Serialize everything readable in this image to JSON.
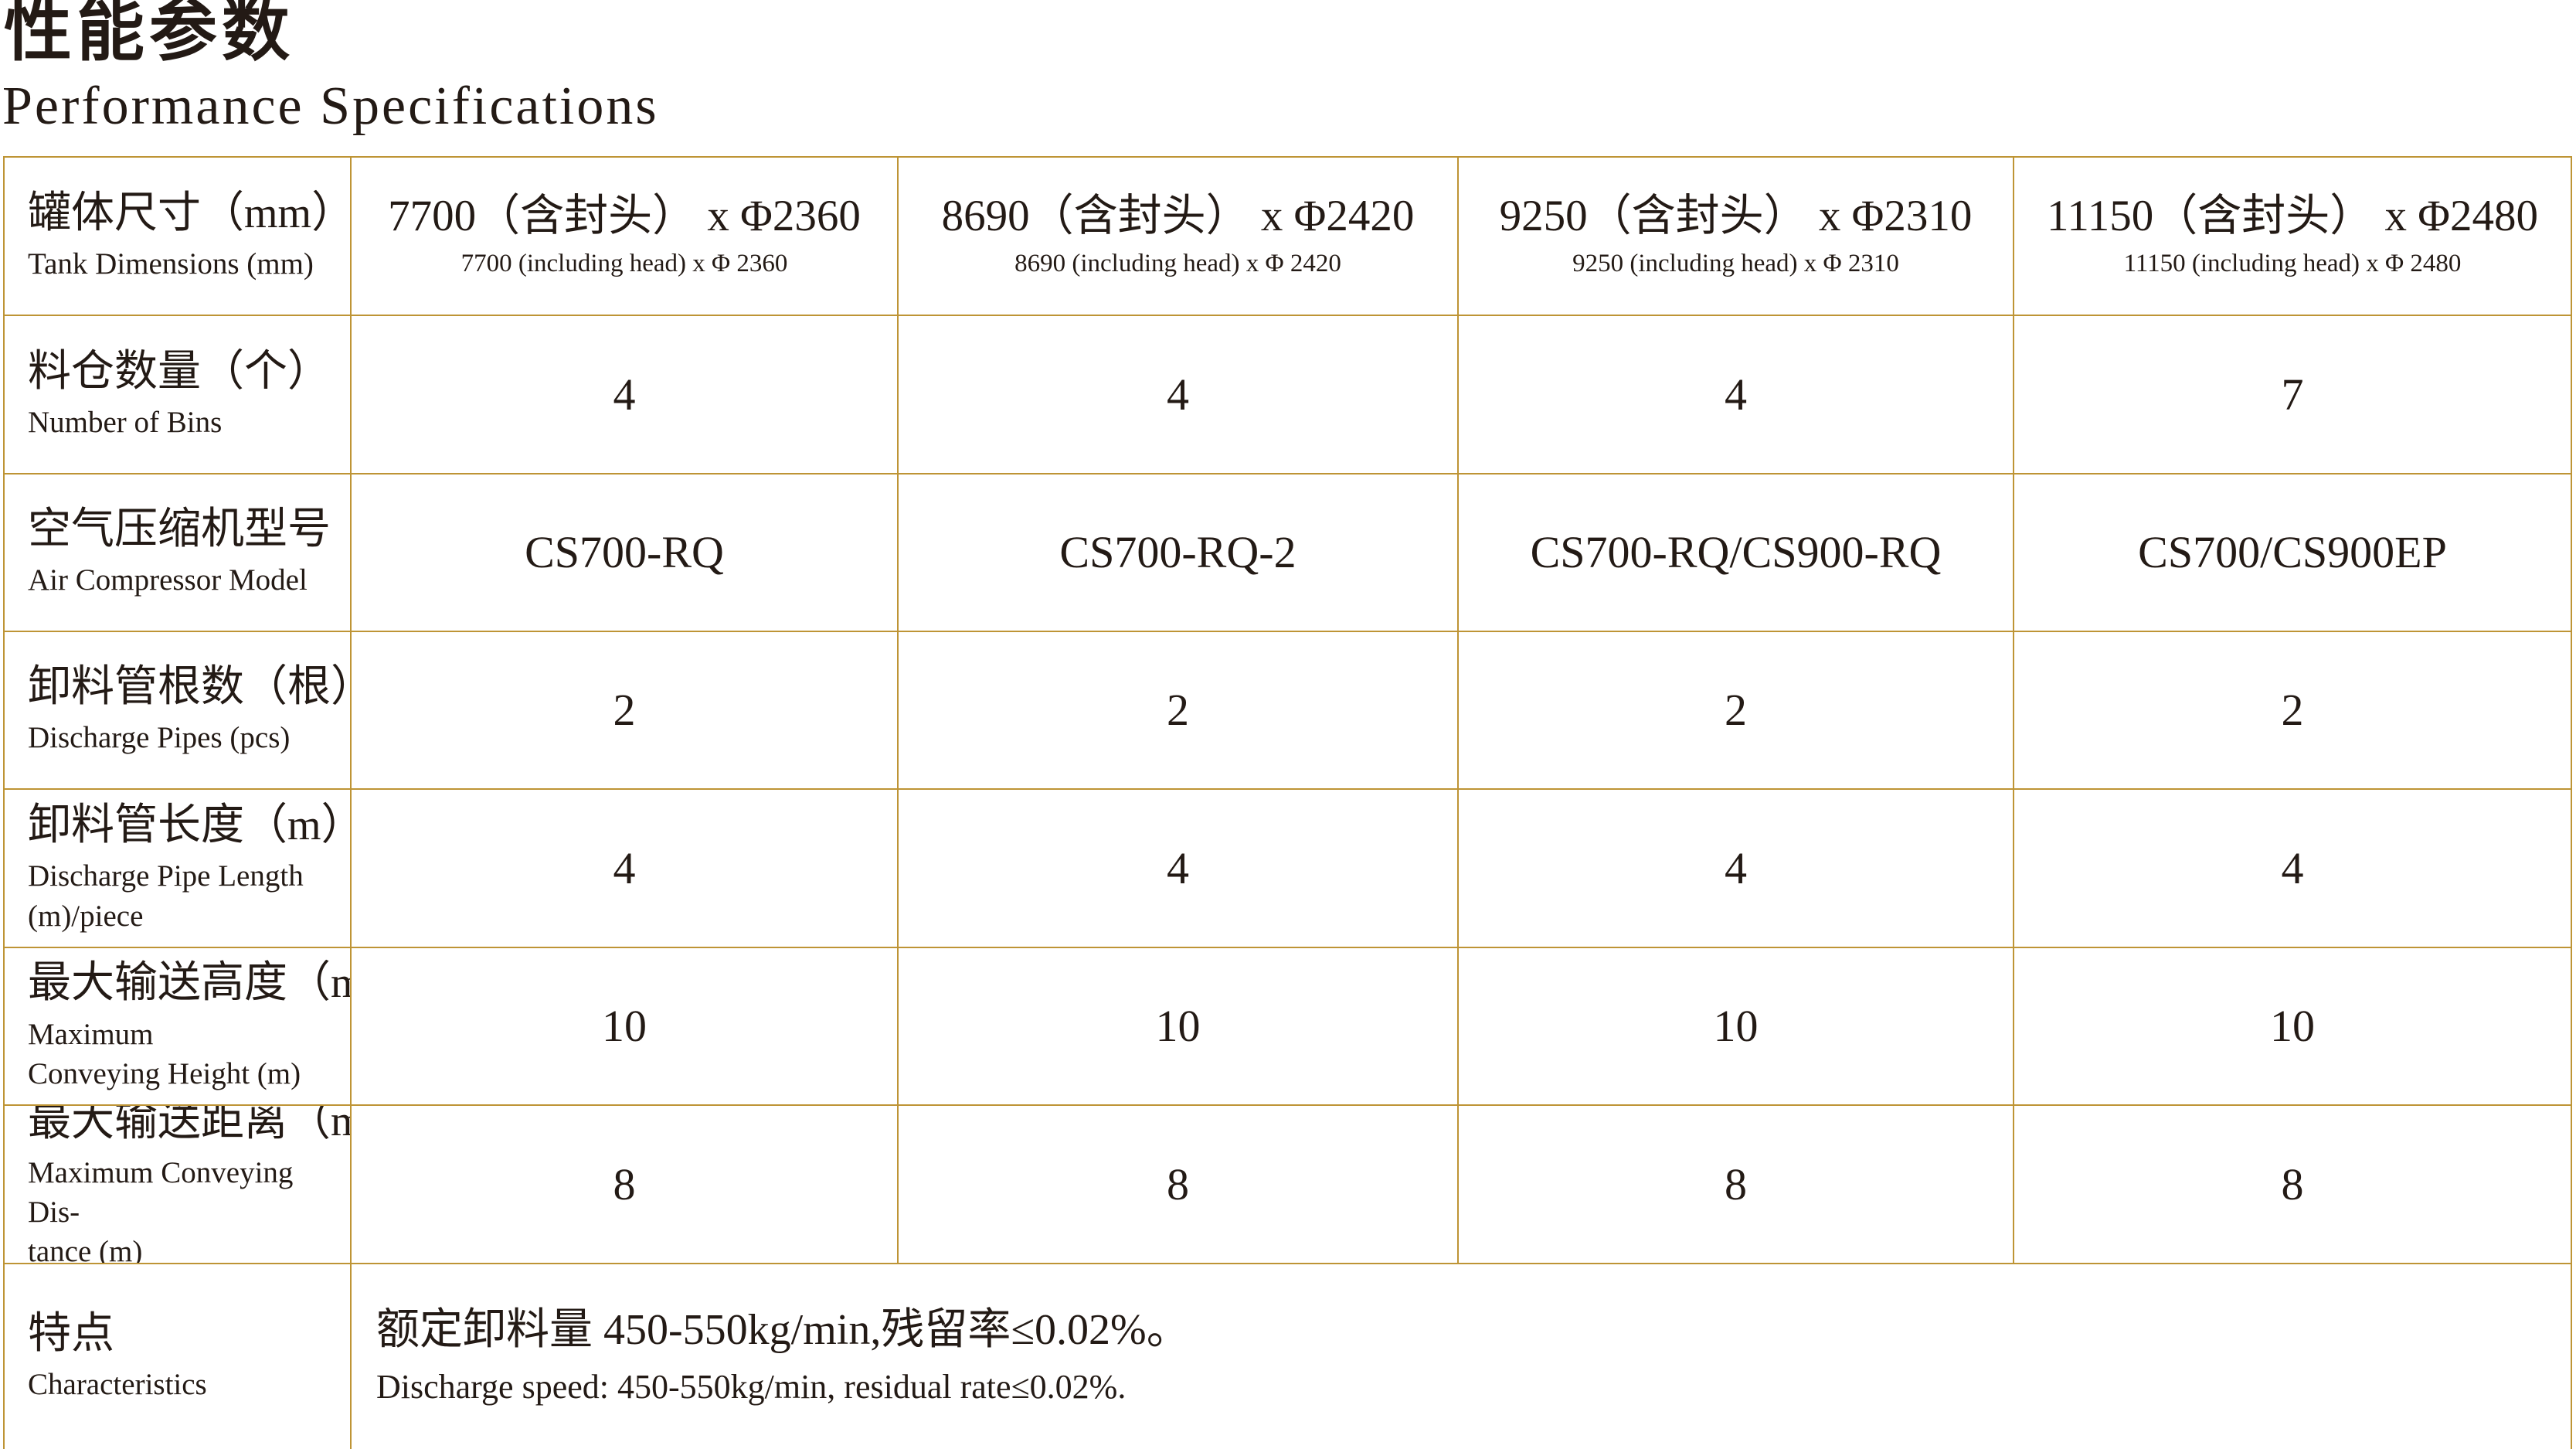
{
  "header": {
    "title_zh": "性能参数",
    "title_en": "Performance Specifications"
  },
  "colors": {
    "border_gold": "#be9435",
    "text": "#231a15",
    "background": "#ffffff"
  },
  "table": {
    "rows": [
      {
        "label_zh": "罐体尺寸（mm）",
        "label_en": "Tank Dimensions (mm)",
        "cells": [
          {
            "zh": "7700（含封头） x Φ2360",
            "en": "7700 (including head) x Φ 2360"
          },
          {
            "zh": "8690（含封头） x Φ2420",
            "en": "8690 (including head) x Φ 2420"
          },
          {
            "zh": "9250（含封头） x Φ2310",
            "en": "9250 (including head) x Φ 2310"
          },
          {
            "zh": "11150（含封头） x Φ2480",
            "en": "11150 (including head) x Φ 2480"
          }
        ]
      },
      {
        "label_zh": "料仓数量（个）",
        "label_en": "Number of Bins",
        "cells": [
          "4",
          "4",
          "4",
          "7"
        ]
      },
      {
        "label_zh": "空气压缩机型号",
        "label_en": "Air Compressor Model",
        "cells": [
          "CS700-RQ",
          "CS700-RQ-2",
          "CS700-RQ/CS900-RQ",
          "CS700/CS900EP"
        ]
      },
      {
        "label_zh": "卸料管根数（根）",
        "label_en": "Discharge Pipes (pcs)",
        "cells": [
          "2",
          "2",
          "2",
          "2"
        ]
      },
      {
        "label_zh": "卸料管长度（m）/根",
        "label_en": "Discharge Pipe Length",
        "label_en2": "(m)/piece",
        "cells": [
          "4",
          "4",
          "4",
          "4"
        ]
      },
      {
        "label_zh": "最大输送高度（m）",
        "label_en": "Maximum",
        "label_en2": "Conveying Height (m)",
        "cells": [
          "10",
          "10",
          "10",
          "10"
        ]
      },
      {
        "label_zh": "最大输送距离（m）",
        "label_en": "Maximum Conveying Dis-",
        "label_en2": "tance (m)",
        "cells": [
          "8",
          "8",
          "8",
          "8"
        ]
      },
      {
        "label_zh": "特点",
        "label_en": "Characteristics",
        "feature_zh": "额定卸料量 450-550kg/min,残留率≤0.02%。",
        "feature_en": "Discharge speed: 450-550kg/min, residual rate≤0.02%."
      }
    ]
  }
}
